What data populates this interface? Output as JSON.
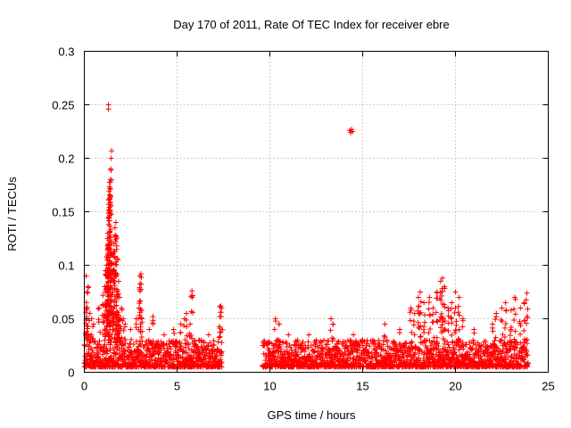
{
  "chart_data": {
    "type": "scatter",
    "title": "Day 170 of 2011, Rate Of TEC Index for receiver ebre",
    "xlabel": "GPS time / hours",
    "ylabel": "ROTI / TECUs",
    "xlim": [
      0,
      25
    ],
    "ylim": [
      0,
      0.3
    ],
    "x_ticks": [
      0,
      5,
      10,
      15,
      20,
      25
    ],
    "y_ticks": [
      0,
      0.05,
      0.1,
      0.15,
      0.2,
      0.25,
      0.3
    ],
    "x_tick_labels": [
      "0",
      "5",
      "10",
      "15",
      "20",
      "25"
    ],
    "y_tick_labels": [
      "0",
      "0.05",
      "0.1",
      "0.15",
      "0.2",
      "0.25",
      "0.3"
    ],
    "grid": true,
    "marker": "+",
    "color": "#ff0000",
    "series": [
      {
        "name": "ROTI",
        "coverage_hours": [
          [
            0,
            7.4
          ],
          [
            9.6,
            23.9
          ]
        ],
        "baseline_range": [
          0.005,
          0.03
        ],
        "points": [
          [
            0.1,
            0.09
          ],
          [
            0.15,
            0.075
          ],
          [
            0.2,
            0.08
          ],
          [
            0.3,
            0.055
          ],
          [
            0.4,
            0.05
          ],
          [
            0.5,
            0.045
          ],
          [
            0.8,
            0.06
          ],
          [
            1.0,
            0.072
          ],
          [
            1.1,
            0.08
          ],
          [
            1.15,
            0.095
          ],
          [
            1.2,
            0.1
          ],
          [
            1.25,
            0.118
          ],
          [
            1.28,
            0.13
          ],
          [
            1.3,
            0.152
          ],
          [
            1.32,
            0.157
          ],
          [
            1.35,
            0.162
          ],
          [
            1.38,
            0.172
          ],
          [
            1.4,
            0.18
          ],
          [
            1.42,
            0.19
          ],
          [
            1.45,
            0.2
          ],
          [
            1.47,
            0.207
          ],
          [
            1.3,
            0.25
          ],
          [
            1.3,
            0.246
          ],
          [
            1.5,
            0.11
          ],
          [
            1.55,
            0.095
          ],
          [
            1.6,
            0.12
          ],
          [
            1.65,
            0.135
          ],
          [
            1.7,
            0.14
          ],
          [
            1.75,
            0.118
          ],
          [
            1.8,
            0.105
          ],
          [
            1.85,
            0.085
          ],
          [
            1.9,
            0.07
          ],
          [
            2.0,
            0.06
          ],
          [
            2.1,
            0.05
          ],
          [
            2.2,
            0.045
          ],
          [
            2.5,
            0.04
          ],
          [
            2.8,
            0.05
          ],
          [
            2.95,
            0.06
          ],
          [
            3.0,
            0.09
          ],
          [
            3.05,
            0.092
          ],
          [
            3.1,
            0.05
          ],
          [
            3.5,
            0.04
          ],
          [
            3.7,
            0.052
          ],
          [
            4.3,
            0.035
          ],
          [
            4.8,
            0.04
          ],
          [
            5.2,
            0.045
          ],
          [
            5.4,
            0.05
          ],
          [
            5.5,
            0.055
          ],
          [
            5.7,
            0.045
          ],
          [
            5.8,
            0.076
          ],
          [
            6.3,
            0.03
          ],
          [
            6.7,
            0.035
          ],
          [
            7.3,
            0.052
          ],
          [
            7.35,
            0.062
          ],
          [
            7.4,
            0.06
          ],
          [
            10.3,
            0.05
          ],
          [
            10.5,
            0.045
          ],
          [
            11.0,
            0.035
          ],
          [
            11.5,
            0.03
          ],
          [
            12.1,
            0.035
          ],
          [
            12.5,
            0.03
          ],
          [
            13.3,
            0.05
          ],
          [
            13.4,
            0.045
          ],
          [
            14.3,
            0.226
          ],
          [
            14.35,
            0.224
          ],
          [
            14.4,
            0.227
          ],
          [
            14.45,
            0.225
          ],
          [
            14.5,
            0.035
          ],
          [
            15.0,
            0.03
          ],
          [
            16.2,
            0.045
          ],
          [
            17.0,
            0.04
          ],
          [
            17.6,
            0.06
          ],
          [
            17.8,
            0.055
          ],
          [
            18.0,
            0.07
          ],
          [
            18.1,
            0.075
          ],
          [
            18.3,
            0.065
          ],
          [
            18.6,
            0.07
          ],
          [
            18.8,
            0.06
          ],
          [
            19.0,
            0.075
          ],
          [
            19.2,
            0.085
          ],
          [
            19.3,
            0.088
          ],
          [
            19.4,
            0.08
          ],
          [
            19.6,
            0.06
          ],
          [
            19.8,
            0.065
          ],
          [
            20.0,
            0.075
          ],
          [
            20.2,
            0.07
          ],
          [
            20.4,
            0.05
          ],
          [
            21.0,
            0.04
          ],
          [
            22.0,
            0.045
          ],
          [
            22.2,
            0.055
          ],
          [
            22.5,
            0.06
          ],
          [
            22.7,
            0.065
          ],
          [
            23.0,
            0.058
          ],
          [
            23.2,
            0.07
          ],
          [
            23.5,
            0.06
          ],
          [
            23.7,
            0.065
          ],
          [
            23.85,
            0.074
          ]
        ]
      }
    ]
  }
}
